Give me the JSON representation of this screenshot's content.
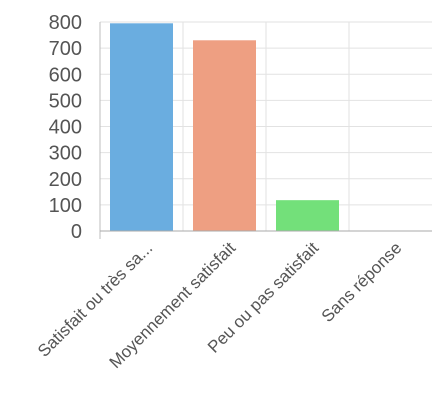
{
  "chart_data": {
    "type": "bar",
    "title": "",
    "xlabel": "",
    "ylabel": "",
    "categories": [
      "Satisfait ou très sa...",
      "Moyennement satisfait",
      "Peu ou pas satisfait",
      "Sans réponse"
    ],
    "values": [
      795,
      730,
      118,
      2
    ],
    "ylim": [
      0,
      800
    ],
    "yticks": [
      "800",
      "700",
      "600",
      "500",
      "400",
      "300",
      "200",
      "100",
      "0"
    ],
    "colors": [
      "#6aade0",
      "#ee9f82",
      "#73e07a",
      "#d9d9d9"
    ],
    "grid": true,
    "legend": "none"
  }
}
